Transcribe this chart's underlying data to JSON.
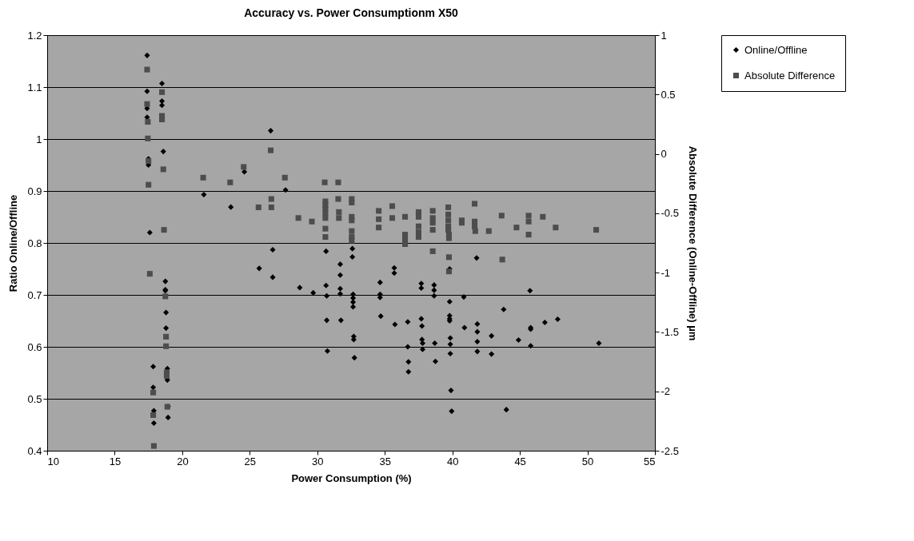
{
  "chart_data": {
    "type": "scatter",
    "title": "Accuracy vs. Power Consumptionm X50",
    "xlabel": "Power Consumption (%)",
    "ylabel": "Ratio Online/Offline",
    "y2label": "Absolute Difference (Online-Offline)  µm",
    "xlim": [
      10,
      55
    ],
    "xticks": [
      10,
      15,
      20,
      25,
      30,
      35,
      40,
      45,
      50,
      55
    ],
    "ylim": [
      0.4,
      1.2
    ],
    "yticks": [
      0.4,
      0.5,
      0.6,
      0.7,
      0.8,
      0.9,
      1,
      1.1,
      1.2
    ],
    "y2lim": [
      -2.5,
      1
    ],
    "y2ticks": [
      -2.5,
      -2,
      -1.5,
      -1,
      -0.5,
      0,
      0.5,
      1
    ],
    "grid": "y",
    "legend": "right",
    "series": [
      {
        "name": "Online/Offline",
        "color": "#000000",
        "marker": "diamond",
        "axis": "y",
        "x": [
          17.4,
          17.4,
          17.4,
          17.4,
          17.5,
          17.5,
          17.6,
          17.85,
          17.85,
          17.9,
          17.9,
          18.5,
          18.5,
          18.5,
          18.6,
          18.75,
          18.75,
          18.75,
          18.8,
          18.8,
          18.9,
          18.9,
          18.95,
          18.95,
          21.6,
          23.6,
          24.6,
          26.55,
          27.65,
          26.7,
          25.7,
          26.7,
          28.7,
          29.7,
          30.65,
          30.65,
          30.7,
          30.7,
          30.75,
          31.7,
          31.7,
          31.7,
          31.7,
          31.75,
          32.6,
          32.6,
          32.65,
          32.65,
          32.65,
          32.65,
          32.7,
          32.7,
          32.75,
          34.65,
          34.65,
          34.65,
          34.7,
          35.7,
          35.7,
          35.75,
          36.7,
          36.7,
          36.75,
          36.75,
          37.7,
          37.7,
          37.7,
          37.75,
          37.75,
          37.8,
          37.8,
          38.65,
          38.65,
          38.65,
          38.7,
          38.75,
          39.8,
          39.8,
          39.8,
          39.8,
          39.8,
          39.85,
          39.85,
          39.85,
          39.9,
          39.95,
          40.85,
          40.9,
          41.8,
          41.85,
          41.85,
          41.85,
          41.85,
          42.9,
          42.9,
          43.8,
          44.0,
          44.9,
          45.75,
          45.8,
          45.8,
          45.8,
          46.85,
          47.8,
          50.85
        ],
        "values": [
          1.161,
          1.092,
          1.059,
          1.042,
          0.962,
          0.95,
          0.82,
          0.562,
          0.522,
          0.477,
          0.453,
          1.107,
          1.073,
          1.065,
          0.976,
          0.726,
          0.71,
          0.708,
          0.666,
          0.636,
          0.558,
          0.536,
          0.485,
          0.464,
          0.893,
          0.869,
          0.937,
          1.016,
          0.902,
          0.787,
          0.751,
          0.734,
          0.714,
          0.704,
          0.784,
          0.718,
          0.698,
          0.651,
          0.592,
          0.759,
          0.738,
          0.712,
          0.702,
          0.651,
          0.789,
          0.773,
          0.701,
          0.694,
          0.686,
          0.677,
          0.62,
          0.614,
          0.579,
          0.724,
          0.701,
          0.695,
          0.659,
          0.752,
          0.742,
          0.643,
          0.648,
          0.6,
          0.571,
          0.552,
          0.722,
          0.713,
          0.654,
          0.64,
          0.614,
          0.607,
          0.595,
          0.719,
          0.709,
          0.698,
          0.607,
          0.572,
          0.75,
          0.687,
          0.66,
          0.654,
          0.65,
          0.617,
          0.605,
          0.587,
          0.516,
          0.476,
          0.696,
          0.637,
          0.771,
          0.644,
          0.629,
          0.61,
          0.591,
          0.621,
          0.586,
          0.672,
          0.479,
          0.613,
          0.708,
          0.637,
          0.634,
          0.602,
          0.647,
          0.653,
          0.607
        ]
      },
      {
        "name": "Absolute Difference",
        "color": "#4d4d4d",
        "marker": "square",
        "axis": "y2",
        "x": [
          17.4,
          17.4,
          17.45,
          17.45,
          17.5,
          17.5,
          17.6,
          17.85,
          17.85,
          17.9,
          18.5,
          18.5,
          18.5,
          18.6,
          18.65,
          18.75,
          18.8,
          18.8,
          18.85,
          18.85,
          18.9,
          21.55,
          23.55,
          24.55,
          25.65,
          26.55,
          26.6,
          26.6,
          27.6,
          28.6,
          29.6,
          30.55,
          30.6,
          30.6,
          30.6,
          30.6,
          30.6,
          30.6,
          30.6,
          31.55,
          31.55,
          31.6,
          31.6,
          32.55,
          32.55,
          32.55,
          32.55,
          32.55,
          32.55,
          32.55,
          34.55,
          34.55,
          34.55,
          35.55,
          35.55,
          36.5,
          36.5,
          36.5,
          36.5,
          37.5,
          37.5,
          37.5,
          37.5,
          37.5,
          38.55,
          38.55,
          38.55,
          38.55,
          38.55,
          39.7,
          39.7,
          39.7,
          39.7,
          39.7,
          39.75,
          39.75,
          39.75,
          39.75,
          40.7,
          40.7,
          41.65,
          41.65,
          41.65,
          41.7,
          42.7,
          43.65,
          43.7,
          44.75,
          45.65,
          45.65,
          45.65,
          46.7,
          47.65,
          50.65
        ],
        "values": [
          0.71,
          0.42,
          0.27,
          0.13,
          -0.06,
          -0.26,
          -1.01,
          -2.01,
          -2.2,
          -2.46,
          0.52,
          0.32,
          0.29,
          -0.13,
          -0.64,
          -1.2,
          -1.54,
          -1.62,
          -1.84,
          -1.87,
          -2.13,
          -0.2,
          -0.24,
          -0.11,
          -0.45,
          0.03,
          -0.38,
          -0.45,
          -0.2,
          -0.54,
          -0.57,
          -0.24,
          -0.4,
          -0.43,
          -0.46,
          -0.5,
          -0.54,
          -0.63,
          -0.7,
          -0.24,
          -0.38,
          -0.49,
          -0.54,
          -0.38,
          -0.41,
          -0.53,
          -0.56,
          -0.65,
          -0.7,
          -0.73,
          -0.48,
          -0.55,
          -0.62,
          -0.44,
          -0.54,
          -0.53,
          -0.68,
          -0.72,
          -0.76,
          -0.49,
          -0.53,
          -0.61,
          -0.66,
          -0.7,
          -0.48,
          -0.54,
          -0.58,
          -0.64,
          -0.82,
          -0.45,
          -0.51,
          -0.56,
          -0.61,
          -0.64,
          -0.68,
          -0.71,
          -0.87,
          -0.99,
          -0.56,
          -0.58,
          -0.42,
          -0.57,
          -0.61,
          -0.65,
          -0.65,
          -0.52,
          -0.89,
          -0.62,
          -0.52,
          -0.57,
          -0.68,
          -0.53,
          -0.62,
          -0.64
        ]
      }
    ]
  }
}
